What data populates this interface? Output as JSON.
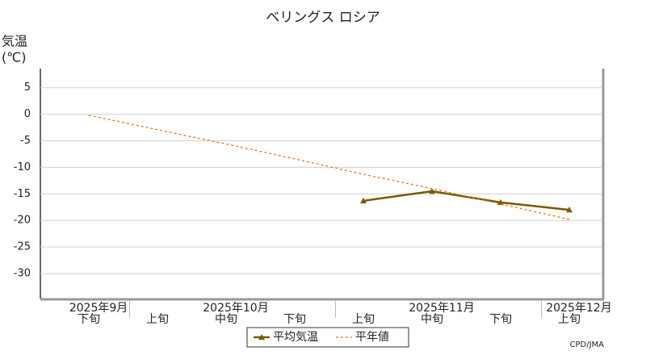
{
  "chart_data": {
    "type": "line",
    "title": "ベリングス ロシア",
    "y_label": "気温",
    "y_unit": "(℃)",
    "categories": [
      "下旬",
      "上旬",
      "中旬",
      "下旬",
      "上旬",
      "中旬",
      "下旬",
      "上旬"
    ],
    "months": [
      "2025年9月",
      "2025年10月",
      "2025年11月",
      "2025年12月"
    ],
    "series": [
      {
        "name": "平均気温",
        "color": "#7a5a00",
        "values": [
          null,
          null,
          null,
          null,
          -16.3,
          -14.5,
          -16.6,
          -18.0
        ]
      },
      {
        "name": "平年値",
        "color": "#e8771e",
        "values": [
          -0.2,
          -2.9,
          -5.6,
          -8.4,
          -11.3,
          -14.0,
          -16.9,
          -19.8
        ]
      }
    ],
    "ylim": [
      -34.7,
      8.6
    ],
    "yticks": [
      5,
      0,
      -5,
      -10,
      -15,
      -20,
      -25,
      -30
    ],
    "grid": true,
    "footer": "CPD/JMA"
  }
}
